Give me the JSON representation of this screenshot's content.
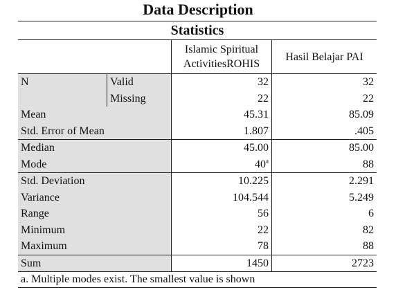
{
  "doc_title": "Data Description",
  "table": {
    "title": "Statistics",
    "columns": [
      "Islamic Spiritual ActivitiesROHIS",
      "Hasil Belajar PAI"
    ],
    "rows": {
      "n_label": "N",
      "valid_label": "Valid",
      "valid": [
        "32",
        "32"
      ],
      "missing_label": "Missing",
      "missing": [
        "22",
        "22"
      ],
      "mean_label": "Mean",
      "mean": [
        "45.31",
        "85.09"
      ],
      "sem_label": "Std. Error of Mean",
      "sem": [
        "1.807",
        ".405"
      ],
      "median_label": "Median",
      "median": [
        "45.00",
        "85.00"
      ],
      "mode_label": "Mode",
      "mode": [
        "40",
        "88"
      ],
      "mode_note_marker": "a",
      "sd_label": "Std. Deviation",
      "sd": [
        "10.225",
        "2.291"
      ],
      "variance_label": "Variance",
      "variance": [
        "104.544",
        "5.249"
      ],
      "range_label": "Range",
      "range": [
        "56",
        "6"
      ],
      "minimum_label": "Minimum",
      "minimum": [
        "22",
        "82"
      ],
      "maximum_label": "Maximum",
      "maximum": [
        "78",
        "88"
      ],
      "sum_label": "Sum",
      "sum": [
        "1450",
        "2723"
      ]
    },
    "footnote": "a. Multiple modes exist. The smallest value is shown"
  }
}
